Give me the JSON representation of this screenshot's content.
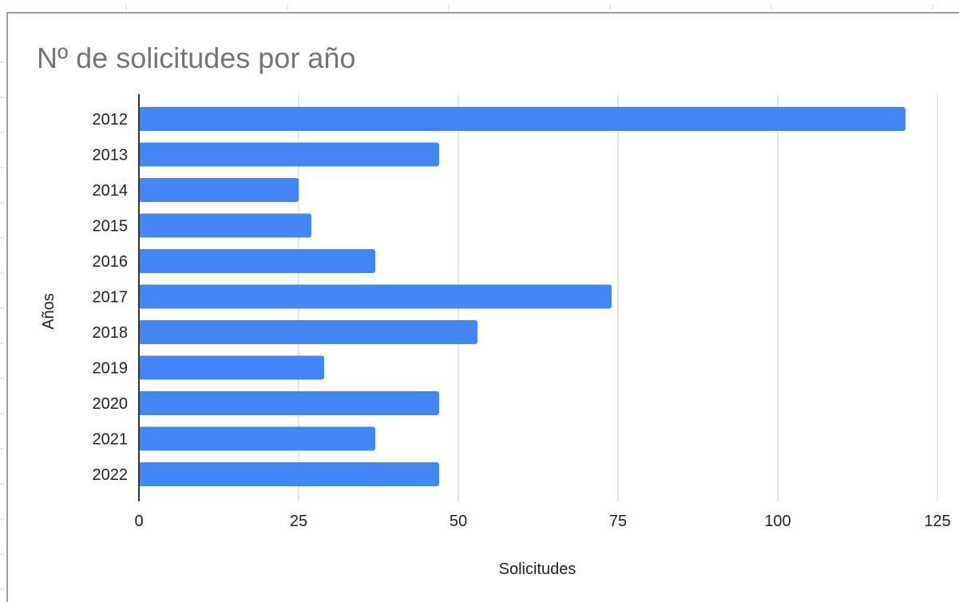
{
  "chart_data": {
    "type": "bar",
    "orientation": "horizontal",
    "title": "Nº de solicitudes por año",
    "xlabel": "Solicitudes",
    "ylabel": "Años",
    "categories": [
      "2012",
      "2013",
      "2014",
      "2015",
      "2016",
      "2017",
      "2018",
      "2019",
      "2020",
      "2021",
      "2022"
    ],
    "values": [
      120,
      47,
      25,
      27,
      37,
      74,
      53,
      29,
      47,
      37,
      47
    ],
    "xlim": [
      0,
      125
    ],
    "xticks": [
      0,
      25,
      50,
      75,
      100,
      125
    ],
    "grid": true,
    "legend": "none",
    "colors": {
      "bar": "#4285f4",
      "grid": "#cccccc",
      "axis": "#333333"
    }
  }
}
